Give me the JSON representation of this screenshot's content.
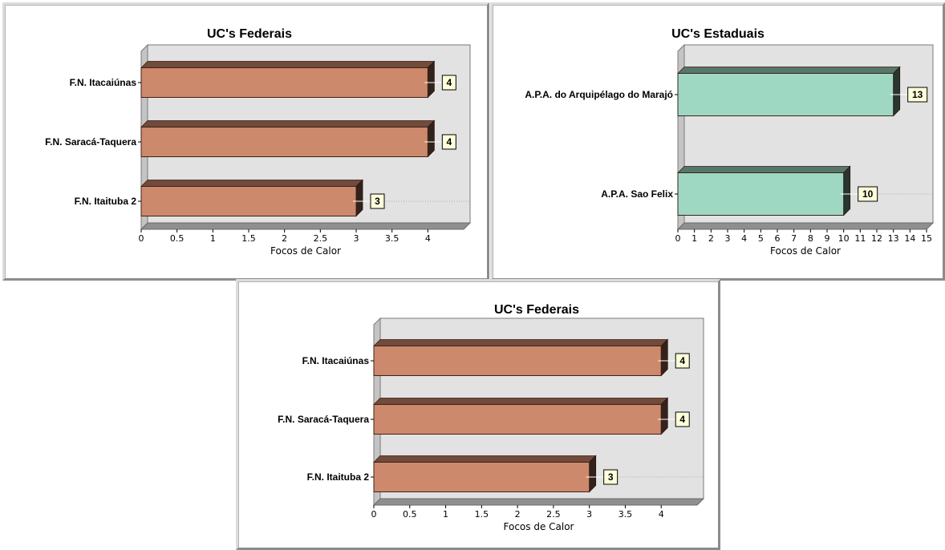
{
  "chart_data": [
    {
      "type": "bar",
      "orientation": "horizontal",
      "title": "UC's Federais",
      "xlabel": "Focos de Calor",
      "ylabel": "",
      "categories": [
        "F.N. Itacaiúnas",
        "F.N. Saracá-Taquera",
        "F.N. Itaituba 2"
      ],
      "values": [
        4,
        4,
        3
      ],
      "xlim": [
        0,
        4.5
      ],
      "ticks": [
        "0",
        "0.5",
        "1",
        "1.5",
        "2",
        "2.5",
        "3",
        "3.5",
        "4"
      ],
      "bar_color": "#cd896b",
      "grid": false,
      "data_labels": true
    },
    {
      "type": "bar",
      "orientation": "horizontal",
      "title": "UC's Estaduais",
      "xlabel": "Focos de Calor",
      "ylabel": "",
      "categories": [
        "A.P.A. do Arquipélago do Marajó",
        "A.P.A. Sao Felix"
      ],
      "values": [
        13,
        10
      ],
      "xlim": [
        0,
        15
      ],
      "ticks": [
        "0",
        "1",
        "2",
        "3",
        "4",
        "5",
        "6",
        "7",
        "8",
        "9",
        "10",
        "11",
        "12",
        "13",
        "14",
        "15"
      ],
      "bar_color": "#9ed8c3",
      "grid": false,
      "data_labels": true
    },
    {
      "type": "bar",
      "orientation": "horizontal",
      "title": "UC's Federais",
      "xlabel": "Focos de Calor",
      "ylabel": "",
      "categories": [
        "F.N. Itacaiúnas",
        "F.N. Saracá-Taquera",
        "F.N. Itaituba 2"
      ],
      "values": [
        4,
        4,
        3
      ],
      "xlim": [
        0,
        4.5
      ],
      "ticks": [
        "0",
        "0.5",
        "1",
        "1.5",
        "2",
        "2.5",
        "3",
        "3.5",
        "4"
      ],
      "bar_color": "#cd896b",
      "grid": false,
      "data_labels": true
    }
  ]
}
